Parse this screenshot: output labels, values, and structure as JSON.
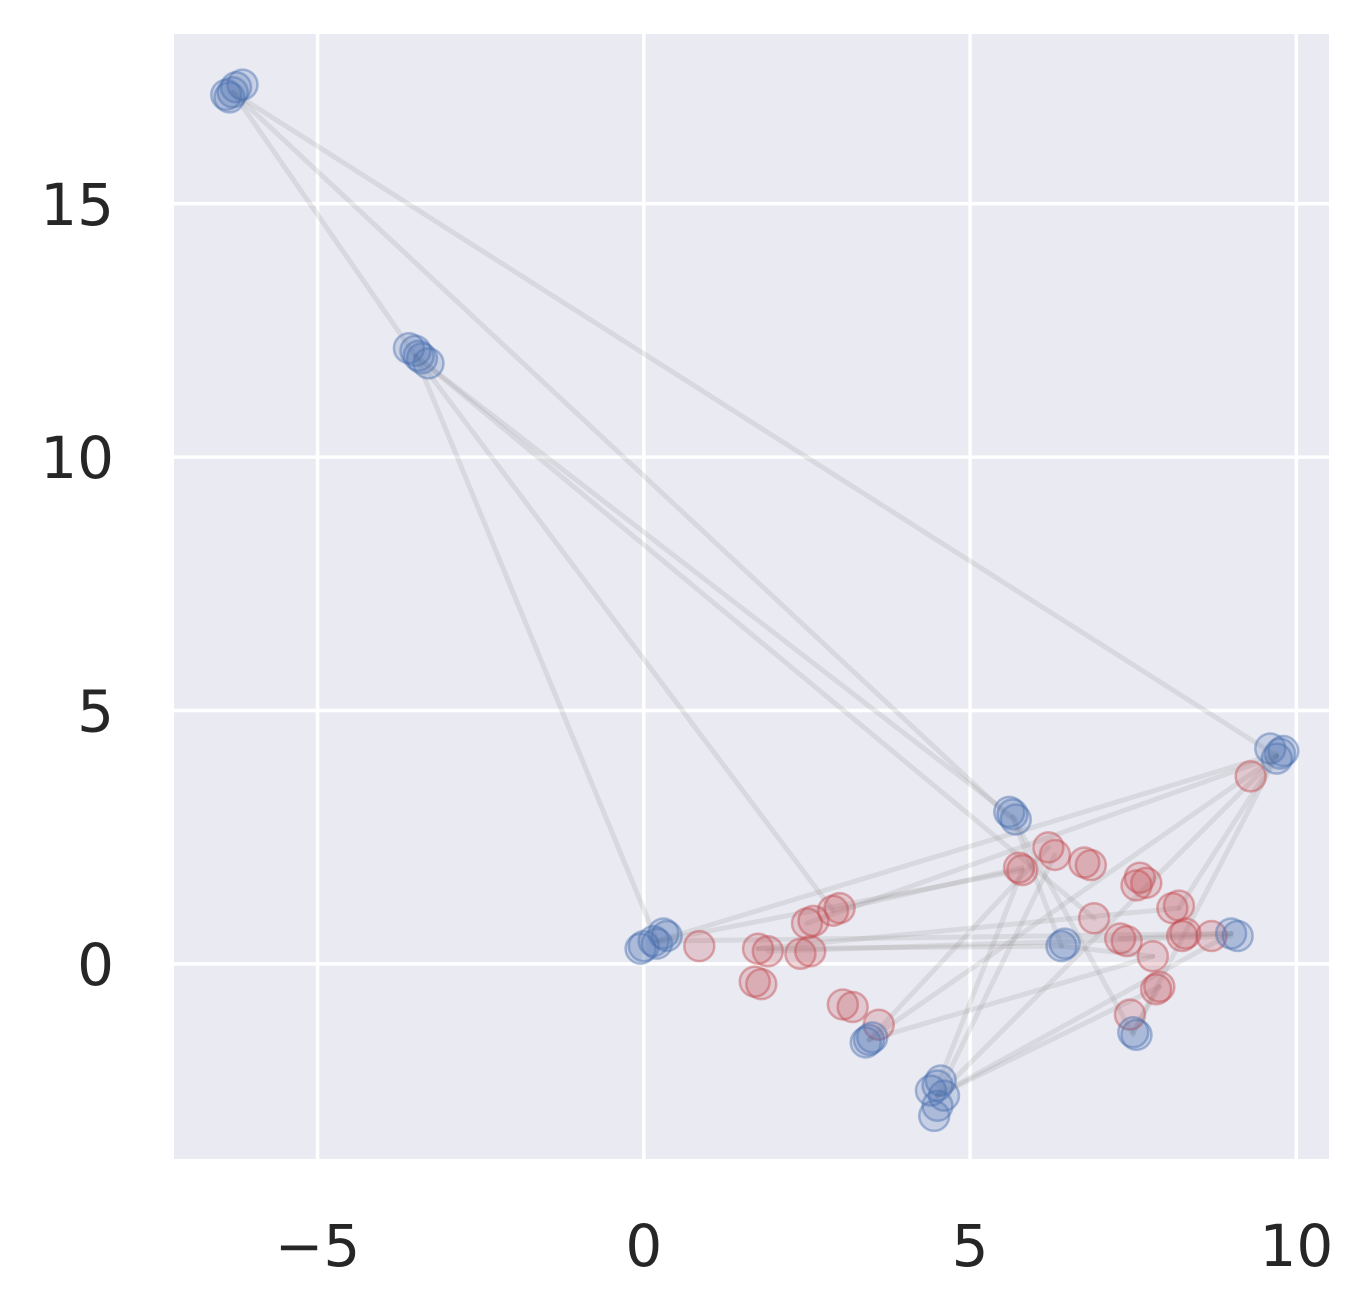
{
  "chart_data": {
    "type": "scatter",
    "title": "",
    "xlabel": "",
    "ylabel": "",
    "xlim": [
      -7.2,
      10.5
    ],
    "ylim": [
      -3.85,
      18.35
    ],
    "grid": true,
    "legend": "none",
    "x_ticks": [
      -5,
      0,
      5,
      10
    ],
    "y_ticks": [
      0,
      5,
      10,
      15
    ],
    "x_tick_labels": [
      "−5",
      "0",
      "5",
      "10"
    ],
    "y_tick_labels": [
      "0",
      "5",
      "10",
      "15"
    ],
    "colors": {
      "background": "#eaeaf2",
      "grid": "#ffffff",
      "blue": "#4c72b0",
      "red": "#c44e52",
      "line": "#8c8c8c"
    },
    "series": [
      {
        "color_key": "blue",
        "points": [
          [
            -6.4,
            17.15
          ],
          [
            -6.25,
            17.3
          ],
          [
            -6.3,
            17.2
          ],
          [
            -6.15,
            17.35
          ],
          [
            -6.35,
            17.1
          ],
          [
            -3.6,
            12.15
          ],
          [
            -3.45,
            12.0
          ],
          [
            -3.4,
            11.95
          ],
          [
            -3.5,
            12.1
          ],
          [
            -3.3,
            11.85
          ],
          [
            0.15,
            0.45
          ],
          [
            0.3,
            0.6
          ],
          [
            0.0,
            0.35
          ],
          [
            0.2,
            0.4
          ],
          [
            -0.05,
            0.3
          ],
          [
            0.35,
            0.55
          ],
          [
            5.6,
            3.0
          ],
          [
            5.7,
            2.85
          ],
          [
            5.65,
            2.95
          ],
          [
            9.75,
            4.15
          ],
          [
            9.6,
            4.25
          ],
          [
            9.7,
            4.05
          ],
          [
            9.8,
            4.2
          ],
          [
            6.4,
            0.35
          ],
          [
            6.45,
            0.4
          ],
          [
            9.0,
            0.6
          ],
          [
            9.1,
            0.55
          ],
          [
            3.45,
            -1.5
          ],
          [
            3.5,
            -1.45
          ],
          [
            3.4,
            -1.55
          ],
          [
            7.5,
            -1.35
          ],
          [
            7.55,
            -1.4
          ],
          [
            4.5,
            -2.4
          ],
          [
            4.6,
            -2.6
          ],
          [
            4.4,
            -2.5
          ],
          [
            4.5,
            -2.8
          ],
          [
            4.45,
            -3.0
          ],
          [
            4.55,
            -2.3
          ]
        ]
      },
      {
        "color_key": "red",
        "points": [
          [
            0.85,
            0.35
          ],
          [
            1.75,
            0.3
          ],
          [
            1.9,
            0.25
          ],
          [
            1.7,
            -0.35
          ],
          [
            1.8,
            -0.4
          ],
          [
            2.5,
            0.8
          ],
          [
            2.6,
            0.85
          ],
          [
            2.4,
            0.2
          ],
          [
            2.55,
            0.25
          ],
          [
            2.9,
            1.05
          ],
          [
            3.0,
            1.1
          ],
          [
            3.05,
            -0.8
          ],
          [
            3.2,
            -0.85
          ],
          [
            3.6,
            -1.2
          ],
          [
            5.8,
            1.85
          ],
          [
            5.75,
            1.9
          ],
          [
            6.2,
            2.3
          ],
          [
            6.3,
            2.15
          ],
          [
            6.85,
            1.95
          ],
          [
            6.75,
            2.0
          ],
          [
            6.9,
            0.9
          ],
          [
            7.3,
            0.5
          ],
          [
            7.4,
            0.45
          ],
          [
            7.55,
            1.55
          ],
          [
            7.6,
            1.7
          ],
          [
            7.7,
            1.6
          ],
          [
            8.1,
            1.1
          ],
          [
            8.2,
            1.15
          ],
          [
            8.3,
            0.6
          ],
          [
            8.25,
            0.55
          ],
          [
            8.7,
            0.55
          ],
          [
            7.8,
            0.15
          ],
          [
            7.85,
            -0.5
          ],
          [
            7.9,
            -0.45
          ],
          [
            7.45,
            -1.0
          ],
          [
            9.3,
            3.7
          ]
        ]
      }
    ],
    "line_segments": [
      [
        [
          -6.3,
          17.2
        ],
        [
          5.6,
          2.9
        ]
      ],
      [
        [
          -6.3,
          17.2
        ],
        [
          -3.5,
          12.0
        ]
      ],
      [
        [
          -6.3,
          17.2
        ],
        [
          9.7,
          4.1
        ]
      ],
      [
        [
          -3.5,
          12.0
        ],
        [
          5.7,
          2.85
        ]
      ],
      [
        [
          -3.5,
          12.0
        ],
        [
          2.9,
          1.05
        ]
      ],
      [
        [
          -3.5,
          12.0
        ],
        [
          0.2,
          0.45
        ]
      ],
      [
        [
          -3.4,
          11.9
        ],
        [
          6.9,
          0.9
        ]
      ],
      [
        [
          0.2,
          0.45
        ],
        [
          9.7,
          4.15
        ]
      ],
      [
        [
          0.2,
          0.45
        ],
        [
          5.8,
          1.85
        ]
      ],
      [
        [
          0.2,
          0.45
        ],
        [
          9.0,
          0.6
        ]
      ],
      [
        [
          1.75,
          0.3
        ],
        [
          6.4,
          0.35
        ]
      ],
      [
        [
          1.75,
          0.3
        ],
        [
          8.2,
          1.1
        ]
      ],
      [
        [
          2.5,
          0.8
        ],
        [
          9.7,
          4.1
        ]
      ],
      [
        [
          2.9,
          1.05
        ],
        [
          5.8,
          1.9
        ]
      ],
      [
        [
          3.45,
          -1.5
        ],
        [
          6.2,
          2.3
        ]
      ],
      [
        [
          3.45,
          -1.5
        ],
        [
          9.7,
          4.1
        ]
      ],
      [
        [
          3.45,
          -1.5
        ],
        [
          7.8,
          0.15
        ]
      ],
      [
        [
          4.5,
          -2.6
        ],
        [
          6.3,
          2.15
        ]
      ],
      [
        [
          4.5,
          -2.6
        ],
        [
          9.7,
          4.1
        ]
      ],
      [
        [
          4.5,
          -2.6
        ],
        [
          9.0,
          0.6
        ]
      ],
      [
        [
          4.5,
          -2.6
        ],
        [
          7.9,
          -0.45
        ]
      ],
      [
        [
          4.5,
          -2.4
        ],
        [
          5.8,
          1.85
        ]
      ],
      [
        [
          5.65,
          2.9
        ],
        [
          7.5,
          -1.4
        ]
      ],
      [
        [
          5.65,
          2.9
        ],
        [
          6.4,
          0.35
        ]
      ],
      [
        [
          6.4,
          0.35
        ],
        [
          7.8,
          0.15
        ]
      ],
      [
        [
          7.5,
          -1.35
        ],
        [
          9.7,
          4.1
        ]
      ],
      [
        [
          7.5,
          -1.35
        ],
        [
          7.9,
          -0.45
        ]
      ],
      [
        [
          9.0,
          0.6
        ],
        [
          7.3,
          0.5
        ]
      ],
      [
        [
          8.2,
          1.1
        ],
        [
          9.7,
          4.1
        ]
      ],
      [
        [
          1.9,
          0.25
        ],
        [
          9.0,
          0.55
        ]
      ]
    ]
  }
}
